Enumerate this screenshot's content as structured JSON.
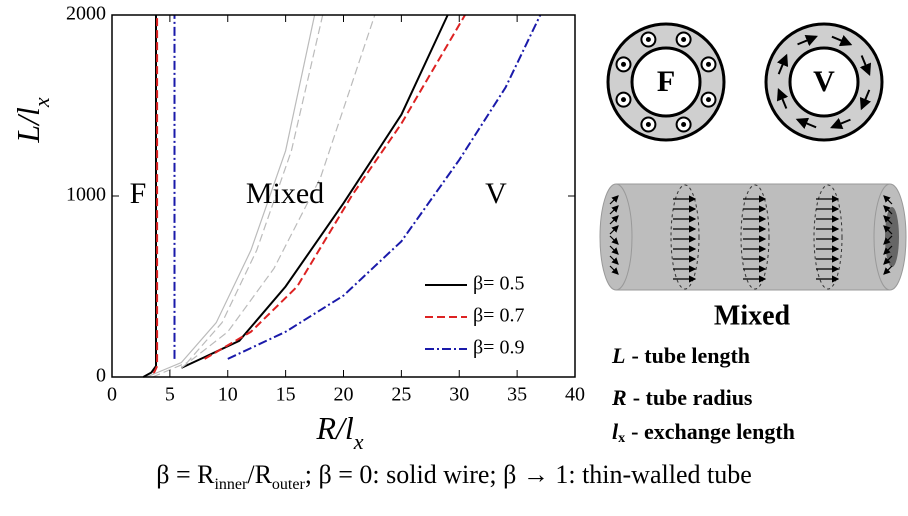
{
  "chart_data": {
    "type": "line",
    "xlabel": "R/l",
    "xlabel_sub": "x",
    "ylabel": "L/l",
    "ylabel_sub": "x",
    "xlim": [
      0,
      40
    ],
    "xticks": [
      0,
      5,
      10,
      15,
      20,
      25,
      30,
      35,
      40
    ],
    "ylim": [
      0,
      2000
    ],
    "yticks": [
      0,
      1000,
      2000
    ],
    "legend": "lower right",
    "regions": [
      "F",
      "Mixed",
      "V"
    ],
    "series": [
      {
        "name": "β= 0.5",
        "color": "#000000",
        "dash": "solid",
        "x": [
          2.7,
          3.4,
          3.8,
          3.8,
          null,
          6,
          8,
          11,
          15,
          20,
          25,
          29
        ],
        "values": [
          0,
          25,
          60,
          2000,
          null,
          50,
          110,
          200,
          500,
          960,
          1450,
          2000
        ]
      },
      {
        "name": "β= 0.7",
        "color": "#dd2222",
        "dash": "dashed",
        "x": [
          3.6,
          3.9,
          3.9,
          null,
          8,
          12,
          16,
          20.7,
          25,
          30.5
        ],
        "values": [
          20,
          60,
          2000,
          null,
          100,
          250,
          500,
          1000,
          1400,
          2000
        ]
      },
      {
        "name": "β= 0.9",
        "color": "#1a1aaa",
        "dash": "dashdot",
        "x": [
          5.4,
          5.4,
          null,
          10,
          15,
          20,
          25,
          30,
          34,
          37
        ],
        "values": [
          100,
          2000,
          null,
          100,
          250,
          450,
          750,
          1200,
          1600,
          2000
        ]
      },
      {
        "color": "#bbbbbb",
        "dash": "solid",
        "x": [
          3,
          6,
          9,
          12,
          15,
          17.5
        ],
        "values": [
          0,
          80,
          300,
          700,
          1250,
          2000
        ]
      },
      {
        "color": "#bbbbbb",
        "dash": "dashed",
        "x": [
          3.5,
          6.5,
          9.5,
          12.5,
          15.5,
          18.2
        ],
        "values": [
          0,
          80,
          300,
          700,
          1250,
          2000
        ]
      },
      {
        "color": "#bbbbbb",
        "dash": "dashed",
        "x": [
          6,
          10,
          14,
          18,
          22.7
        ],
        "values": [
          50,
          250,
          600,
          1100,
          2000
        ]
      }
    ]
  },
  "diagrams": {
    "ferro": "F",
    "vortex": "V",
    "mixed": "Mixed"
  },
  "key": [
    {
      "symbol": "L",
      "text": "- tube length"
    },
    {
      "symbol": "R",
      "text": "- tube radius"
    },
    {
      "symbol": "l",
      "sub": "x",
      "text": "- exchange length"
    }
  ],
  "caption": [
    "β = R",
    "inner",
    "/R",
    "outer",
    "; β = 0: solid wire; β → 1: thin-walled tube"
  ]
}
